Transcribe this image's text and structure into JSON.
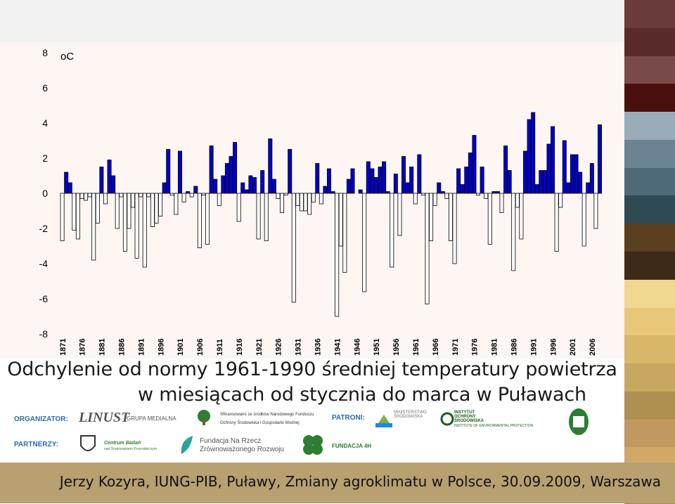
{
  "chart_data": {
    "type": "bar",
    "unit_label": "oC",
    "ylim": [
      -8,
      8
    ],
    "yticks": [
      "8",
      "6",
      "4",
      "2",
      "0",
      "-2",
      "-4",
      "-6",
      "-8"
    ],
    "x_tick_labels": [
      "1871",
      "1876",
      "1881",
      "1886",
      "1891",
      "1896",
      "1901",
      "1906",
      "1911",
      "1916",
      "1921",
      "1926",
      "1931",
      "1936",
      "1941",
      "1946",
      "1951",
      "1956",
      "1961",
      "1966",
      "1971",
      "1976",
      "1981",
      "1986",
      "1991",
      "1996",
      "2001",
      "2006"
    ],
    "x_start": 1871,
    "positive_color": "#0000cc",
    "negative_color": "#ffffff",
    "values": [
      -2.7,
      1.2,
      0.6,
      -2.1,
      -2.6,
      -0.3,
      -0.4,
      -0.2,
      -3.8,
      -1.7,
      1.5,
      -0.6,
      1.9,
      1.0,
      -2.0,
      -0.2,
      -3.3,
      -2.0,
      -0.8,
      -3.7,
      -0.2,
      -4.2,
      -0.2,
      -1.9,
      -1.7,
      -1.3,
      0.6,
      2.5,
      -0.1,
      -1.2,
      2.4,
      -0.5,
      0.1,
      -0.2,
      0.4,
      -3.1,
      -0.1,
      -2.9,
      2.7,
      0.8,
      -0.7,
      1.0,
      1.7,
      2.1,
      2.9,
      -1.6,
      0.6,
      0.2,
      1.0,
      0.9,
      -2.6,
      1.3,
      -2.7,
      3.1,
      0.8,
      -0.3,
      -1.1,
      -0.1,
      2.5,
      -6.2,
      -0.7,
      -1.0,
      -1.0,
      -1.2,
      -0.5,
      1.7,
      -0.6,
      0.4,
      1.4,
      0.1,
      -7.0,
      -3.0,
      -4.5,
      0.8,
      1.4,
      0.0,
      0.2,
      -5.6,
      1.8,
      1.4,
      0.9,
      1.5,
      1.8,
      0.1,
      -4.2,
      1.1,
      -2.4,
      2.1,
      0.6,
      1.5,
      -0.6,
      2.2,
      -0.1,
      -6.3,
      -2.7,
      -0.7,
      0.6,
      0.1,
      -0.3,
      -2.7,
      -4.0,
      1.4,
      0.5,
      1.5,
      2.3,
      3.3,
      -0.1,
      1.5,
      -0.3,
      -2.9,
      0.1,
      0.1,
      -1.1,
      2.7,
      1.3,
      -4.4,
      -0.8,
      -2.6,
      2.4,
      4.2,
      4.6,
      0.5,
      1.3,
      1.3,
      2.8,
      3.8,
      -3.3,
      -0.8,
      3.0,
      0.6,
      2.2,
      2.2,
      1.2,
      -3.0,
      0.6,
      1.7,
      -2.0,
      3.9
    ],
    "title_line1": "Odchylenie od normy 1961-1990 średniej temperatury powietrza",
    "title_line2": "w miesiącach od stycznia do marca w Puławach"
  },
  "logos": {
    "organizer_label": "ORGANIZATOR:",
    "partners_label": "PARTNERZY:",
    "patrons_label": "PATRONI:",
    "linust": "LINUST",
    "linust_sub": "GRUPA MEDIALNA",
    "nfos_line1": "Sfinansowano ze środków Narodowego Funduszu",
    "nfos_line2": "Ochrony Środowiska i Gospodarki Wodnej",
    "ministerstwo": "MINISTERSTWO ŚRODOWISKA",
    "ios_line1": "INSTYTUT OCHRONY ŚRODOWISKA",
    "ios_line2": "INSTITUTE OF ENVIRONMENTAL PROTECTION",
    "centrum_line1": "Centrum Badań",
    "centrum_line2": "nad Środowiskiem Przyrodniczym",
    "fundacja_line1": "Fundacja Na Rzecz",
    "fundacja_line2": "Zrównoważonego Rozwoju",
    "fundacja4h": "FUNDACJA 4H"
  },
  "footer": {
    "text": "Jerzy Kozyra, IUNG-PIB, Puławy, Zmiany agroklimatu w Polsce, 30.09.2009, Warszawa"
  },
  "stripe_colors": [
    "#6b3a3a",
    "#5a2a2a",
    "#7a4a4a",
    "#4a1010",
    "#9aacb8",
    "#6a8494",
    "#4e6a78",
    "#2e4a52",
    "#5a4020",
    "#3e2a18",
    "#f0d890",
    "#e8c878",
    "#d8b868",
    "#c8a860",
    "#b09050",
    "#c09860",
    "#d0a868",
    "#b08850"
  ]
}
